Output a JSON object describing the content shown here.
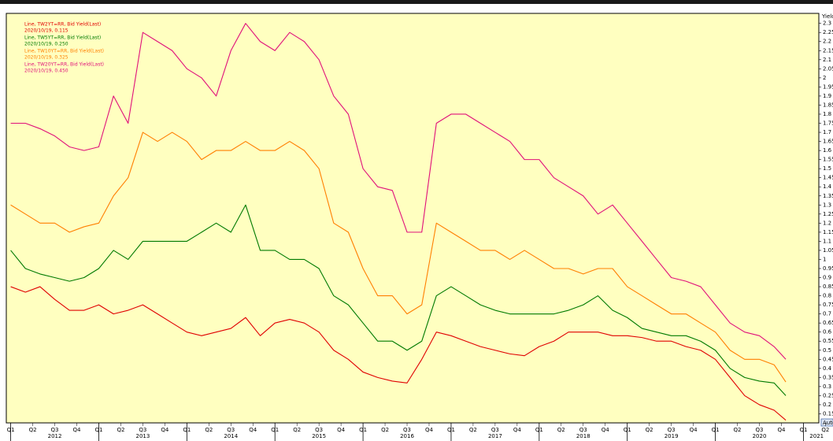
{
  "chart_data": {
    "type": "line",
    "y_axis_label": "Yield",
    "axis_button": "Auto",
    "xlim": [
      2011.95,
      2021.3
    ],
    "ylim": [
      0.1,
      2.355
    ],
    "xticks": [
      {
        "value": 2012,
        "label": "Q1"
      },
      {
        "value": 2012.25,
        "label": "Q2"
      },
      {
        "value": 2012.5,
        "label": "Q3"
      },
      {
        "value": 2012.75,
        "label": "Q4"
      },
      {
        "value": 2013,
        "label": "Q1"
      },
      {
        "value": 2013.25,
        "label": "Q2"
      },
      {
        "value": 2013.5,
        "label": "Q3"
      },
      {
        "value": 2013.75,
        "label": "Q4"
      },
      {
        "value": 2014,
        "label": "Q1"
      },
      {
        "value": 2014.25,
        "label": "Q2"
      },
      {
        "value": 2014.5,
        "label": "Q3"
      },
      {
        "value": 2014.75,
        "label": "Q4"
      },
      {
        "value": 2015,
        "label": "Q1"
      },
      {
        "value": 2015.25,
        "label": "Q2"
      },
      {
        "value": 2015.5,
        "label": "Q3"
      },
      {
        "value": 2015.75,
        "label": "Q4"
      },
      {
        "value": 2016,
        "label": "Q1"
      },
      {
        "value": 2016.25,
        "label": "Q2"
      },
      {
        "value": 2016.5,
        "label": "Q3"
      },
      {
        "value": 2016.75,
        "label": "Q4"
      },
      {
        "value": 2017,
        "label": "Q1"
      },
      {
        "value": 2017.25,
        "label": "Q2"
      },
      {
        "value": 2017.5,
        "label": "Q3"
      },
      {
        "value": 2017.75,
        "label": "Q4"
      },
      {
        "value": 2018,
        "label": "Q1"
      },
      {
        "value": 2018.25,
        "label": "Q2"
      },
      {
        "value": 2018.5,
        "label": "Q3"
      },
      {
        "value": 2018.75,
        "label": "Q4"
      },
      {
        "value": 2019,
        "label": "Q1"
      },
      {
        "value": 2019.25,
        "label": "Q2"
      },
      {
        "value": 2019.5,
        "label": "Q3"
      },
      {
        "value": 2019.75,
        "label": "Q4"
      },
      {
        "value": 2020,
        "label": "Q1"
      },
      {
        "value": 2020.25,
        "label": "Q2"
      },
      {
        "value": 2020.5,
        "label": "Q3"
      },
      {
        "value": 2020.75,
        "label": "Q4"
      },
      {
        "value": 2021,
        "label": "Q1"
      },
      {
        "value": 2021.25,
        "label": "Q2"
      }
    ],
    "year_labels": [
      {
        "value": 2012.5,
        "label": "2012"
      },
      {
        "value": 2013.5,
        "label": "2013"
      },
      {
        "value": 2014.5,
        "label": "2014"
      },
      {
        "value": 2015.5,
        "label": "2015"
      },
      {
        "value": 2016.5,
        "label": "2016"
      },
      {
        "value": 2017.5,
        "label": "2017"
      },
      {
        "value": 2018.5,
        "label": "2018"
      },
      {
        "value": 2019.5,
        "label": "2019"
      },
      {
        "value": 2020.5,
        "label": "2020"
      },
      {
        "value": 2021.15,
        "label": "2021"
      }
    ],
    "yticks": [
      0.15,
      0.2,
      0.25,
      0.3,
      0.35,
      0.4,
      0.45,
      0.5,
      0.55,
      0.6,
      0.65,
      0.7,
      0.75,
      0.8,
      0.85,
      0.9,
      0.95,
      1,
      1.05,
      1.1,
      1.15,
      1.2,
      1.25,
      1.3,
      1.35,
      1.4,
      1.45,
      1.5,
      1.55,
      1.6,
      1.65,
      1.7,
      1.75,
      1.8,
      1.85,
      1.9,
      1.95,
      2,
      2.05,
      2.1,
      2.15,
      2.2,
      2.25,
      2.3
    ],
    "grid": false,
    "x": [
      2012,
      2012.167,
      2012.333,
      2012.5,
      2012.667,
      2012.833,
      2013,
      2013.167,
      2013.333,
      2013.5,
      2013.667,
      2013.833,
      2014,
      2014.167,
      2014.333,
      2014.5,
      2014.667,
      2014.833,
      2015,
      2015.167,
      2015.333,
      2015.5,
      2015.667,
      2015.833,
      2016,
      2016.167,
      2016.333,
      2016.5,
      2016.667,
      2016.833,
      2017,
      2017.167,
      2017.333,
      2017.5,
      2017.667,
      2017.833,
      2018,
      2018.167,
      2018.333,
      2018.5,
      2018.667,
      2018.833,
      2019,
      2019.167,
      2019.333,
      2019.5,
      2019.667,
      2019.833,
      2020,
      2020.167,
      2020.333,
      2020.5,
      2020.667,
      2020.8
    ],
    "series": [
      {
        "name": "Line, TW2YT=RR, Bid Yield(Last)",
        "legend_detail": "2020/10/19, 0.115",
        "color": "#e00000",
        "values": [
          0.85,
          0.82,
          0.85,
          0.78,
          0.72,
          0.72,
          0.75,
          0.7,
          0.72,
          0.75,
          0.7,
          0.65,
          0.6,
          0.58,
          0.6,
          0.62,
          0.68,
          0.58,
          0.65,
          0.67,
          0.65,
          0.6,
          0.5,
          0.45,
          0.38,
          0.35,
          0.33,
          0.32,
          0.45,
          0.6,
          0.58,
          0.55,
          0.52,
          0.5,
          0.48,
          0.47,
          0.52,
          0.55,
          0.6,
          0.6,
          0.6,
          0.58,
          0.58,
          0.57,
          0.55,
          0.55,
          0.52,
          0.5,
          0.45,
          0.35,
          0.25,
          0.2,
          0.17,
          0.115
        ]
      },
      {
        "name": "Line, TW5YT=RR, Bid Yield(Last)",
        "legend_detail": "2020/10/19, 0.250",
        "color": "#007a00",
        "values": [
          1.05,
          0.95,
          0.92,
          0.9,
          0.88,
          0.9,
          0.95,
          1.05,
          1.0,
          1.1,
          1.1,
          1.1,
          1.1,
          1.15,
          1.2,
          1.15,
          1.3,
          1.05,
          1.05,
          1.0,
          1.0,
          0.95,
          0.8,
          0.75,
          0.65,
          0.55,
          0.55,
          0.5,
          0.55,
          0.8,
          0.85,
          0.8,
          0.75,
          0.72,
          0.7,
          0.7,
          0.7,
          0.7,
          0.72,
          0.75,
          0.8,
          0.72,
          0.68,
          0.62,
          0.6,
          0.58,
          0.58,
          0.55,
          0.5,
          0.4,
          0.35,
          0.33,
          0.32,
          0.25
        ]
      },
      {
        "name": "Line, TW10YT=RR, Bid Yield(Last)",
        "legend_detail": "2020/10/19, 0.325",
        "color": "#ff7f00",
        "values": [
          1.3,
          1.25,
          1.2,
          1.2,
          1.15,
          1.18,
          1.2,
          1.35,
          1.45,
          1.7,
          1.65,
          1.7,
          1.65,
          1.55,
          1.6,
          1.6,
          1.65,
          1.6,
          1.6,
          1.65,
          1.6,
          1.5,
          1.2,
          1.15,
          0.95,
          0.8,
          0.8,
          0.7,
          0.75,
          1.2,
          1.15,
          1.1,
          1.05,
          1.05,
          1.0,
          1.05,
          1.0,
          0.95,
          0.95,
          0.92,
          0.95,
          0.95,
          0.85,
          0.8,
          0.75,
          0.7,
          0.7,
          0.65,
          0.6,
          0.5,
          0.45,
          0.45,
          0.42,
          0.325
        ]
      },
      {
        "name": "Line, TW20YT=RR, Bid Yield(Last)",
        "legend_detail": "2020/10/19, 0.450",
        "color": "#e0107a",
        "values": [
          1.75,
          1.75,
          1.72,
          1.68,
          1.62,
          1.6,
          1.62,
          1.9,
          1.75,
          2.25,
          2.2,
          2.15,
          2.05,
          2.0,
          1.9,
          2.15,
          2.3,
          2.2,
          2.15,
          2.25,
          2.2,
          2.1,
          1.9,
          1.8,
          1.5,
          1.4,
          1.38,
          1.15,
          1.15,
          1.75,
          1.8,
          1.8,
          1.75,
          1.7,
          1.65,
          1.55,
          1.55,
          1.45,
          1.4,
          1.35,
          1.25,
          1.3,
          1.2,
          1.1,
          1.0,
          0.9,
          0.88,
          0.85,
          0.75,
          0.65,
          0.6,
          0.58,
          0.52,
          0.45
        ]
      }
    ]
  }
}
